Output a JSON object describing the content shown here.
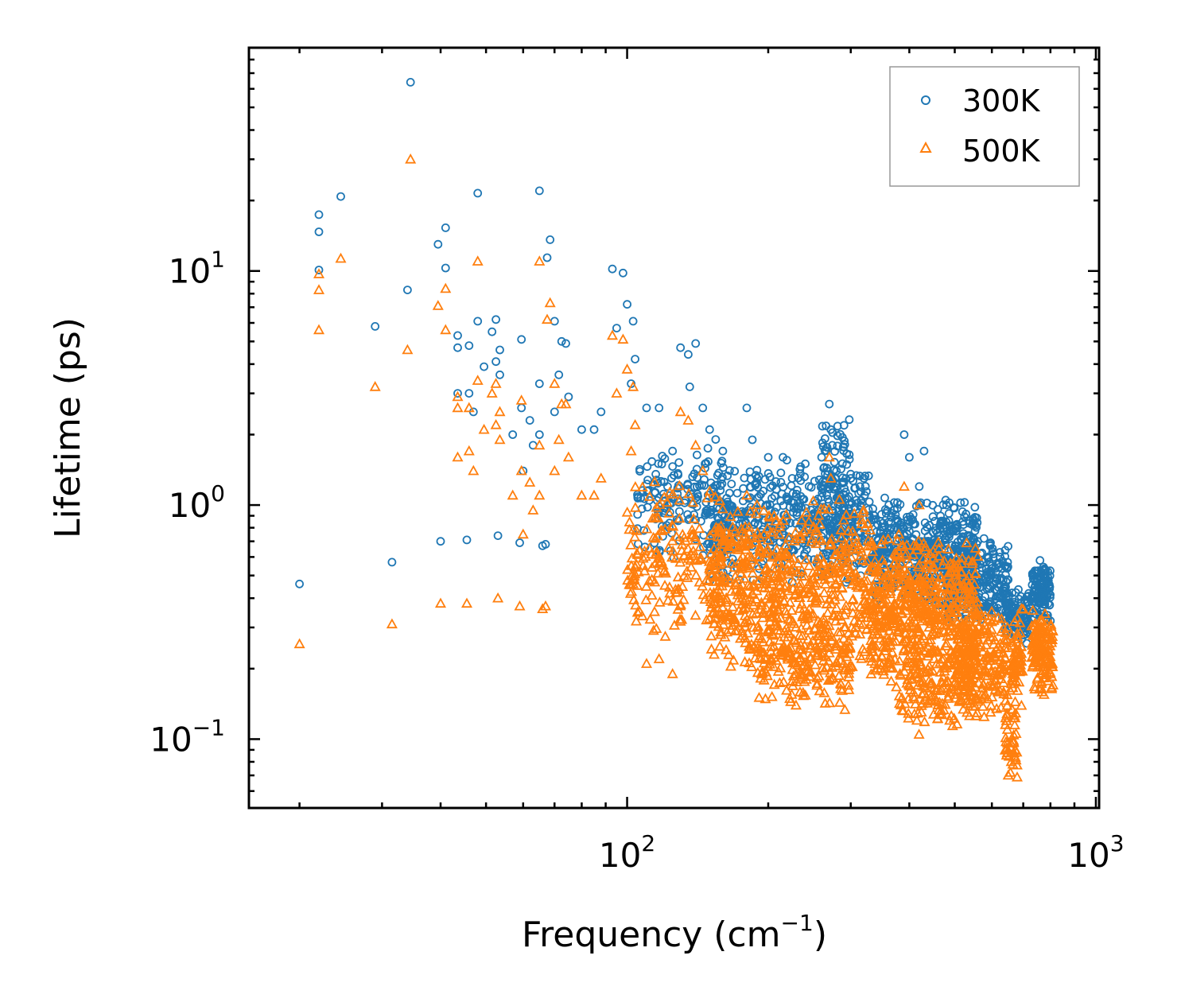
{
  "chart_data": {
    "type": "scatter",
    "title": "",
    "xlabel": "Frequency (cm⁻¹)",
    "xlabel_base": "Frequency (cm",
    "xlabel_sup": "−1",
    "xlabel_tail": ")",
    "ylabel": "Lifetime (ps)",
    "xscale": "log",
    "yscale": "log",
    "xlim": [
      15.6,
      1016
    ],
    "ylim": [
      0.0508,
      89.9
    ],
    "x_ticks": [
      {
        "value": 100,
        "base": "10",
        "exp": "2"
      },
      {
        "value": 1000,
        "base": "10",
        "exp": "3"
      }
    ],
    "y_ticks": [
      {
        "value": 0.1,
        "base": "10",
        "exp": "−1"
      },
      {
        "value": 1,
        "base": "10",
        "exp": "0"
      },
      {
        "value": 10,
        "base": "10",
        "exp": "1"
      }
    ],
    "grid": false,
    "legend_position": "top-right",
    "series": [
      {
        "name": "300K",
        "label": "300K",
        "marker": "circle",
        "color": "#1f77b4",
        "points": [
          [
            20,
            0.46
          ],
          [
            22,
            17.4
          ],
          [
            22,
            14.7
          ],
          [
            22,
            10.1
          ],
          [
            24.5,
            20.8
          ],
          [
            29,
            5.8
          ],
          [
            31.5,
            0.57
          ],
          [
            34,
            8.3
          ],
          [
            34.5,
            64
          ],
          [
            39.5,
            13
          ],
          [
            40,
            0.7
          ],
          [
            41,
            15.3
          ],
          [
            41,
            10.3
          ],
          [
            43.5,
            5.3
          ],
          [
            43.5,
            4.7
          ],
          [
            43.5,
            3.0
          ],
          [
            45.5,
            0.71
          ],
          [
            46,
            4.8
          ],
          [
            46,
            3.0
          ],
          [
            47,
            2.5
          ],
          [
            48,
            21.5
          ],
          [
            48,
            6.1
          ],
          [
            49.5,
            3.9
          ],
          [
            51.5,
            5.5
          ],
          [
            52.5,
            6.2
          ],
          [
            52.5,
            4.1
          ],
          [
            53,
            0.74
          ],
          [
            53.5,
            4.6
          ],
          [
            53.5,
            3.6
          ],
          [
            57,
            2.0
          ],
          [
            59,
            0.69
          ],
          [
            59.5,
            5.1
          ],
          [
            59.5,
            2.6
          ],
          [
            60,
            1.4
          ],
          [
            62,
            2.3
          ],
          [
            63,
            1.8
          ],
          [
            65,
            22
          ],
          [
            65,
            3.3
          ],
          [
            65,
            2.0
          ],
          [
            66,
            0.67
          ],
          [
            67,
            0.68
          ],
          [
            67.5,
            11.4
          ],
          [
            68.5,
            13.6
          ],
          [
            70,
            6.1
          ],
          [
            70,
            2.5
          ],
          [
            71.5,
            3.6
          ],
          [
            72.5,
            5.0
          ],
          [
            74,
            4.9
          ],
          [
            75,
            2.9
          ],
          [
            80,
            2.1
          ],
          [
            85,
            2.1
          ],
          [
            88,
            2.5
          ],
          [
            93,
            10.2
          ],
          [
            95,
            5.7
          ],
          [
            98,
            9.8
          ],
          [
            100,
            7.2
          ],
          [
            102,
            3.3
          ],
          [
            103,
            6.1
          ],
          [
            104,
            4.2
          ],
          [
            110,
            2.6
          ],
          [
            117,
            2.6
          ],
          [
            125,
            1.7
          ],
          [
            130,
            4.7
          ],
          [
            135,
            4.4
          ],
          [
            136,
            3.2
          ],
          [
            140,
            4.9
          ],
          [
            145,
            2.6
          ],
          [
            150,
            2.1
          ],
          [
            160,
            1.7
          ],
          [
            180,
            2.6
          ],
          [
            185,
            1.9
          ],
          [
            200,
            1.6
          ],
          [
            215,
            1.6
          ],
          [
            225,
            1.3
          ],
          [
            240,
            1.5
          ],
          [
            260,
            1.6
          ],
          [
            270,
            2.7
          ],
          [
            272,
            2.1
          ],
          [
            274,
            1.8
          ],
          [
            300,
            1.3
          ],
          [
            320,
            1.3
          ],
          [
            390,
            2.0
          ],
          [
            400,
            1.6
          ],
          [
            420,
            1.2
          ],
          [
            430,
            1.7
          ],
          [
            480,
            1.0
          ],
          [
            520,
            0.85
          ],
          [
            560,
            0.7
          ],
          [
            600,
            0.55
          ],
          [
            650,
            0.48
          ],
          [
            720,
            0.35
          ],
          [
            760,
            0.58
          ],
          [
            780,
            0.5
          ],
          [
            800,
            0.32
          ]
        ],
        "dense_clouds": [
          {
            "x_range": [
              105,
              160
            ],
            "y_range": [
              0.55,
              2.0
            ],
            "count": 160
          },
          {
            "x_range": [
              150,
              330
            ],
            "y_range": [
              0.45,
              1.6
            ],
            "count": 520
          },
          {
            "x_range": [
              260,
              300
            ],
            "y_range": [
              0.6,
              2.6
            ],
            "count": 80
          },
          {
            "x_range": [
              330,
              560
            ],
            "y_range": [
              0.35,
              1.1
            ],
            "count": 520
          },
          {
            "x_range": [
              480,
              650
            ],
            "y_range": [
              0.3,
              0.75
            ],
            "count": 260
          },
          {
            "x_range": [
              640,
              720
            ],
            "y_range": [
              0.25,
              0.45
            ],
            "count": 100
          },
          {
            "x_range": [
              730,
              800
            ],
            "y_range": [
              0.3,
              0.6
            ],
            "count": 120
          }
        ]
      },
      {
        "name": "500K",
        "label": "500K",
        "marker": "triangle",
        "color": "#ff7f0e",
        "points": [
          [
            20,
            0.255
          ],
          [
            22,
            9.7
          ],
          [
            22,
            8.3
          ],
          [
            22,
            5.6
          ],
          [
            24.5,
            11.3
          ],
          [
            29,
            3.2
          ],
          [
            31.5,
            0.31
          ],
          [
            34,
            4.6
          ],
          [
            34.5,
            30
          ],
          [
            39.5,
            7.1
          ],
          [
            40,
            0.38
          ],
          [
            41,
            8.4
          ],
          [
            41,
            5.6
          ],
          [
            43.5,
            2.9
          ],
          [
            43.5,
            2.6
          ],
          [
            43.5,
            1.6
          ],
          [
            45.5,
            0.38
          ],
          [
            46,
            2.6
          ],
          [
            46,
            1.7
          ],
          [
            47,
            1.4
          ],
          [
            48,
            11
          ],
          [
            48,
            3.4
          ],
          [
            49.5,
            2.1
          ],
          [
            51.5,
            3.0
          ],
          [
            52.5,
            3.3
          ],
          [
            52.5,
            2.2
          ],
          [
            53,
            0.4
          ],
          [
            53.5,
            2.5
          ],
          [
            53.5,
            1.9
          ],
          [
            57,
            1.1
          ],
          [
            59,
            0.37
          ],
          [
            59.5,
            2.8
          ],
          [
            59.5,
            1.4
          ],
          [
            60,
            0.75
          ],
          [
            62,
            1.25
          ],
          [
            63,
            0.95
          ],
          [
            65,
            11
          ],
          [
            65,
            1.8
          ],
          [
            65,
            1.1
          ],
          [
            66,
            0.36
          ],
          [
            67,
            0.37
          ],
          [
            67.5,
            6.2
          ],
          [
            68.5,
            7.3
          ],
          [
            70,
            3.3
          ],
          [
            70,
            1.4
          ],
          [
            71.5,
            1.9
          ],
          [
            72.5,
            2.7
          ],
          [
            74,
            2.7
          ],
          [
            75,
            1.6
          ],
          [
            80,
            1.1
          ],
          [
            85,
            1.1
          ],
          [
            88,
            1.3
          ],
          [
            93,
            5.3
          ],
          [
            95,
            3.0
          ],
          [
            98,
            5.1
          ],
          [
            100,
            3.8
          ],
          [
            102,
            1.7
          ],
          [
            103,
            3.2
          ],
          [
            104,
            2.2
          ],
          [
            110,
            0.21
          ],
          [
            117,
            0.22
          ],
          [
            125,
            0.19
          ],
          [
            130,
            2.5
          ],
          [
            135,
            2.3
          ],
          [
            140,
            1.8
          ],
          [
            145,
            1.4
          ],
          [
            180,
            1.1
          ],
          [
            270,
            1.6
          ],
          [
            272,
            1.3
          ],
          [
            390,
            1.2
          ],
          [
            420,
            1.0
          ],
          [
            650,
            0.07
          ],
          [
            660,
            0.08
          ],
          [
            800,
            0.19
          ],
          [
            810,
            0.17
          ]
        ],
        "dense_clouds": [
          {
            "x_range": [
              100,
              160
            ],
            "y_range": [
              0.25,
              1.3
            ],
            "count": 200
          },
          {
            "x_range": [
              150,
              330
            ],
            "y_range": [
              0.18,
              1.1
            ],
            "count": 650
          },
          {
            "x_range": [
              190,
              300
            ],
            "y_range": [
              0.13,
              0.35
            ],
            "count": 180
          },
          {
            "x_range": [
              330,
              560
            ],
            "y_range": [
              0.15,
              0.8
            ],
            "count": 620
          },
          {
            "x_range": [
              380,
              560
            ],
            "y_range": [
              0.1,
              0.25
            ],
            "count": 140
          },
          {
            "x_range": [
              500,
              700
            ],
            "y_range": [
              0.12,
              0.4
            ],
            "count": 280
          },
          {
            "x_range": [
              640,
              680
            ],
            "y_range": [
              0.065,
              0.15
            ],
            "count": 40
          },
          {
            "x_range": [
              730,
              810
            ],
            "y_range": [
              0.15,
              0.38
            ],
            "count": 140
          }
        ]
      }
    ]
  }
}
